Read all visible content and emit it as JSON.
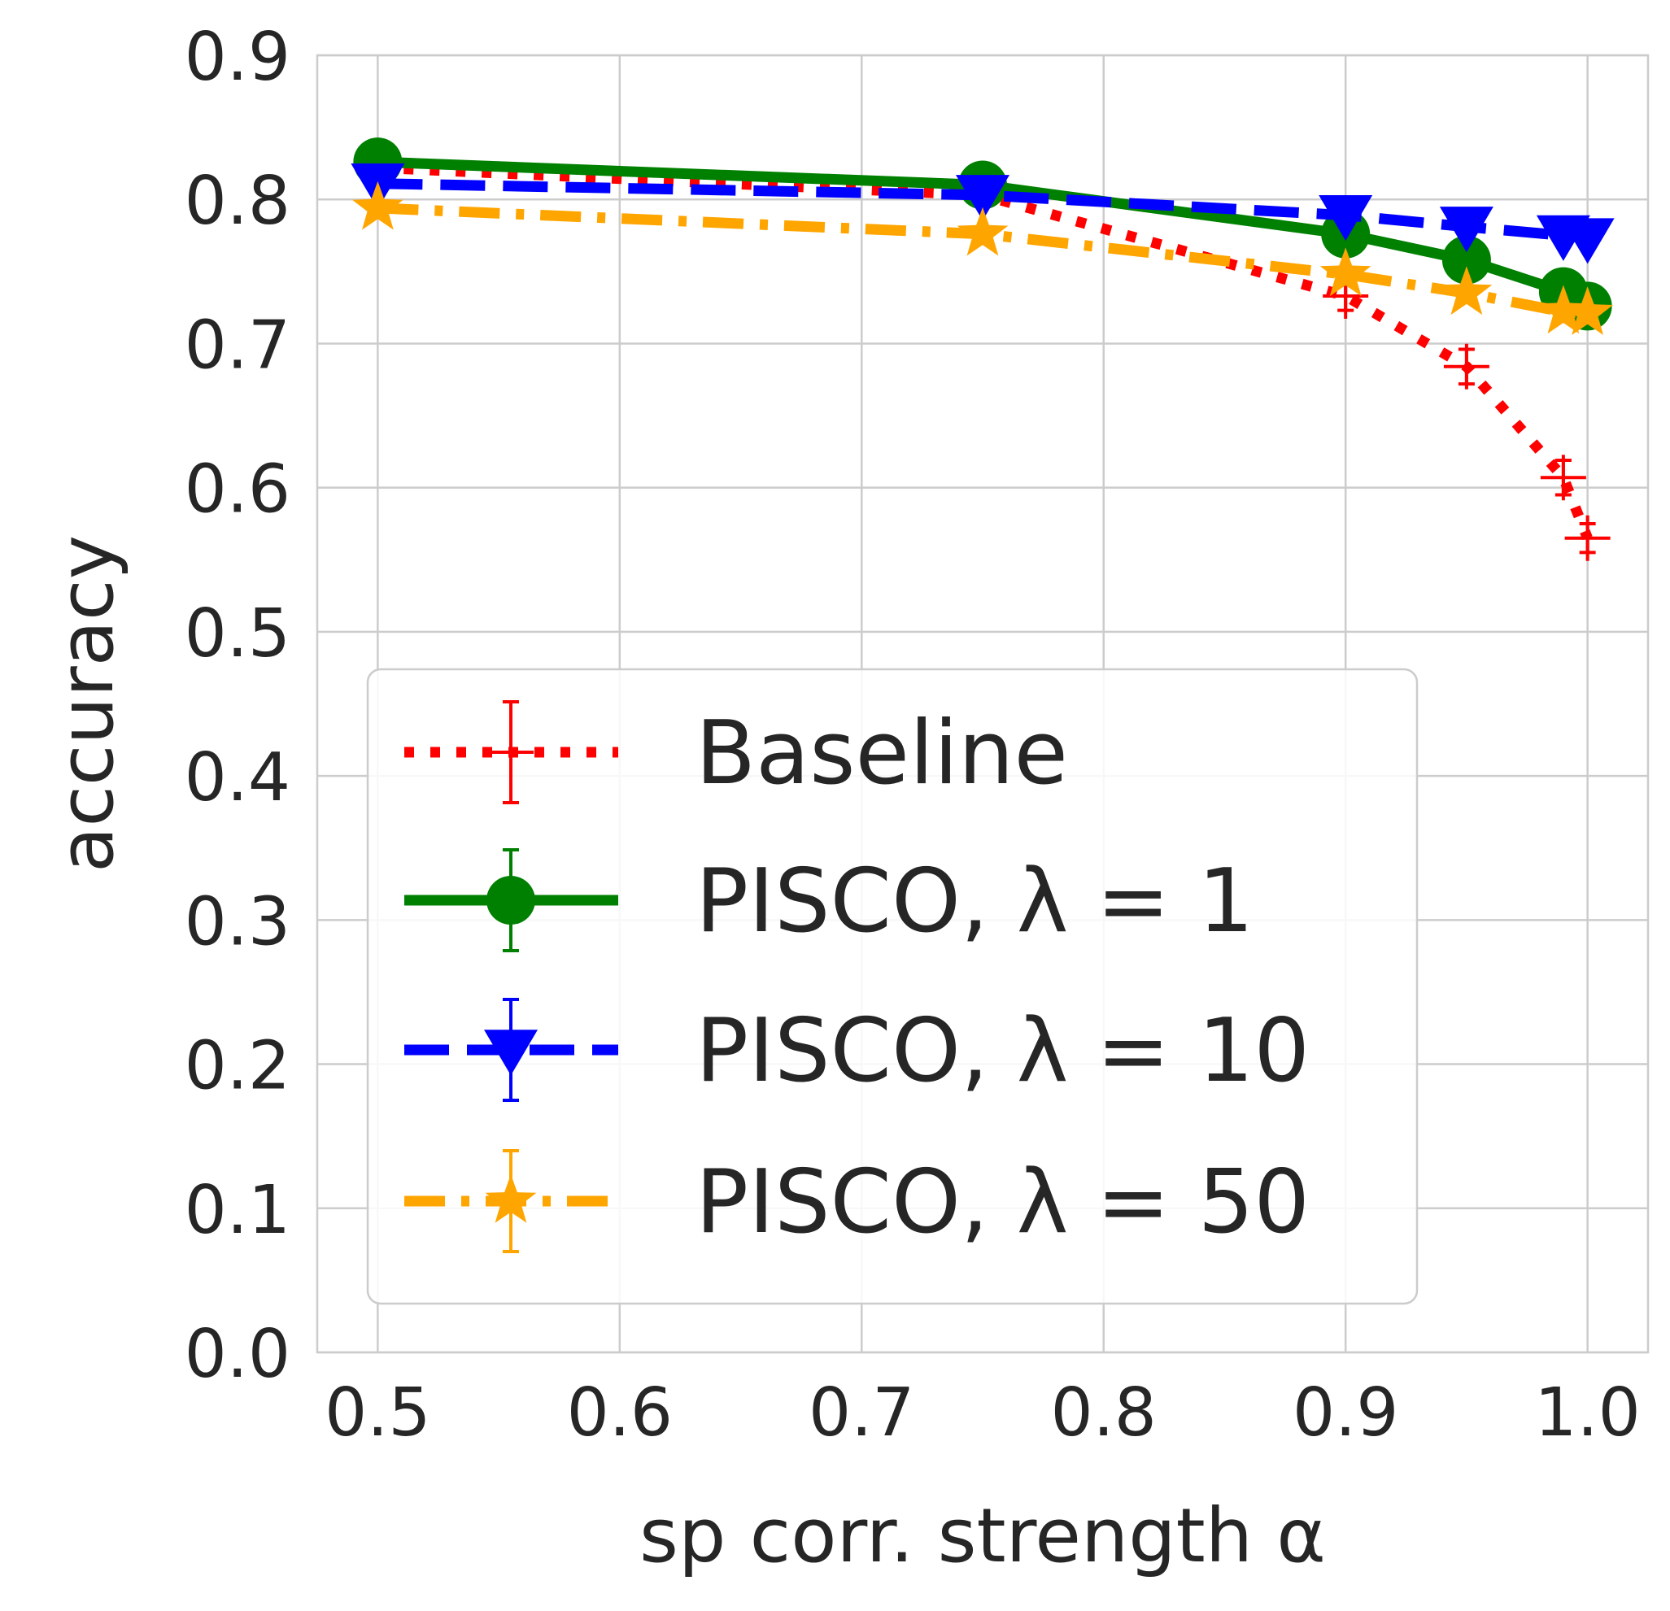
{
  "chart_data": {
    "type": "line",
    "xlabel": "sp corr. strength α",
    "ylabel": "accuracy",
    "xlim": [
      0.475,
      1.025
    ],
    "ylim": [
      0.0,
      0.9
    ],
    "xticks": [
      "0.5",
      "0.6",
      "0.7",
      "0.8",
      "0.9",
      "1.0"
    ],
    "yticks": [
      "0.0",
      "0.1",
      "0.2",
      "0.3",
      "0.4",
      "0.5",
      "0.6",
      "0.7",
      "0.8",
      "0.9"
    ],
    "grid": true,
    "legend_position": "lower-left",
    "series": [
      {
        "name": "Baseline",
        "legend_label": "Baseline",
        "color": "#ff0000",
        "linestyle": "dotted",
        "marker": "plus",
        "x": [
          0.5,
          0.75,
          0.9,
          0.95,
          0.99,
          1.0
        ],
        "y": [
          0.822,
          0.803,
          0.733,
          0.684,
          0.607,
          0.565
        ],
        "err": [
          0.003,
          0.004,
          0.01,
          0.012,
          0.012,
          0.01
        ]
      },
      {
        "name": "PISCO, λ = 1",
        "legend_label": "PISCO, λ = 1",
        "color": "#008000",
        "linestyle": "solid",
        "marker": "circle",
        "x": [
          0.5,
          0.75,
          0.9,
          0.95,
          0.99,
          1.0
        ],
        "y": [
          0.826,
          0.81,
          0.776,
          0.758,
          0.736,
          0.726
        ],
        "err": [
          0.003,
          0.004,
          0.005,
          0.005,
          0.005,
          0.005
        ]
      },
      {
        "name": "PISCO, λ = 10",
        "legend_label": "PISCO, λ = 10",
        "color": "#0000ff",
        "linestyle": "dashed",
        "marker": "triangle-down",
        "x": [
          0.5,
          0.75,
          0.9,
          0.95,
          0.99,
          1.0
        ],
        "y": [
          0.811,
          0.803,
          0.789,
          0.781,
          0.775,
          0.773
        ],
        "err": [
          0.003,
          0.003,
          0.004,
          0.004,
          0.004,
          0.004
        ]
      },
      {
        "name": "PISCO, λ = 50",
        "legend_label": "PISCO, λ = 50",
        "color": "#ffa500",
        "linestyle": "dashdot",
        "marker": "star",
        "x": [
          0.5,
          0.75,
          0.9,
          0.95,
          0.99,
          1.0
        ],
        "y": [
          0.794,
          0.776,
          0.748,
          0.735,
          0.722,
          0.721
        ],
        "err": [
          0.003,
          0.004,
          0.005,
          0.005,
          0.005,
          0.005
        ]
      }
    ]
  }
}
